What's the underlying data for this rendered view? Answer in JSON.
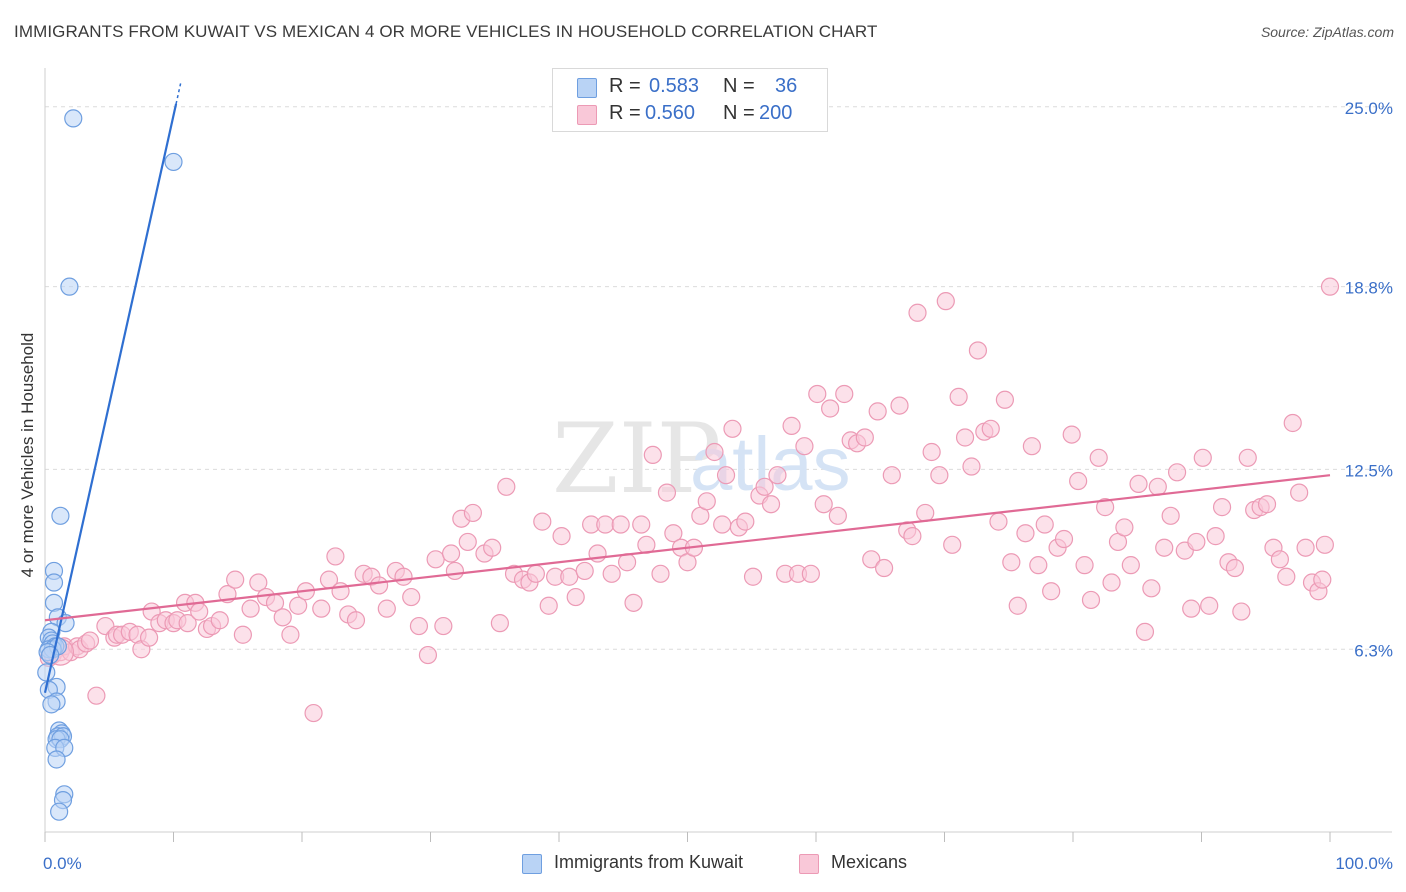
{
  "title": "IMMIGRANTS FROM KUWAIT VS MEXICAN 4 OR MORE VEHICLES IN HOUSEHOLD CORRELATION CHART",
  "source": "Source: ZipAtlas.com",
  "watermark": {
    "zip": "ZIP",
    "atlas": "atlas"
  },
  "stats": {
    "rows": [
      {
        "r_label": "R =",
        "r_value": "0.583",
        "n_label": "N =",
        "n_value": "36"
      },
      {
        "r_label": "R =",
        "r_value": "0.560",
        "n_label": "N =",
        "n_value": "200"
      }
    ]
  },
  "legend": {
    "kuwait": "Immigrants from Kuwait",
    "mexicans": "Mexicans"
  },
  "colors": {
    "blue_fill": "#b9d3f5",
    "blue_stroke": "#6f9fe0",
    "blue_line": "#2f6fd1",
    "pink_fill": "#f9c8d8",
    "pink_stroke": "#ec9ab5",
    "pink_line": "#e06a95",
    "axis_label": "#3a6fc8",
    "grid": "#dcdcdc"
  },
  "chart_data": {
    "type": "scatter",
    "title": "IMMIGRANTS FROM KUWAIT VS MEXICAN 4 OR MORE VEHICLES IN HOUSEHOLD CORRELATION CHART",
    "xlabel": "",
    "ylabel": "4 or more Vehicles in Household",
    "xlim": [
      0,
      100
    ],
    "ylim": [
      0,
      26.2
    ],
    "x_tick_labels": [
      "0.0%",
      "100.0%"
    ],
    "y_ticks": [
      6.3,
      12.5,
      18.8,
      25.0
    ],
    "y_tick_labels": [
      "6.3%",
      "12.5%",
      "18.8%",
      "25.0%"
    ],
    "legend_position": "bottom",
    "series": [
      {
        "name": "Immigrants from Kuwait",
        "color": "blue",
        "trend": {
          "x0": 0.0,
          "y0": 4.8,
          "x1": 10.2,
          "y1": 25.1,
          "dash_to_x": 10.6,
          "dash_to_y": 25.9
        },
        "points": [
          [
            2.2,
            24.6
          ],
          [
            10.0,
            23.1
          ],
          [
            1.9,
            18.8
          ],
          [
            1.2,
            10.9
          ],
          [
            0.7,
            9.0
          ],
          [
            0.7,
            8.6
          ],
          [
            0.7,
            7.9
          ],
          [
            1.0,
            7.4
          ],
          [
            1.6,
            7.2
          ],
          [
            0.5,
            6.9
          ],
          [
            0.3,
            6.7
          ],
          [
            0.5,
            6.6
          ],
          [
            0.6,
            6.5
          ],
          [
            0.8,
            6.4
          ],
          [
            0.3,
            6.3
          ],
          [
            0.6,
            6.3
          ],
          [
            1.0,
            6.4
          ],
          [
            0.2,
            6.2
          ],
          [
            0.4,
            6.1
          ],
          [
            0.1,
            5.5
          ],
          [
            0.9,
            5.0
          ],
          [
            0.3,
            4.9
          ],
          [
            0.9,
            4.5
          ],
          [
            0.5,
            4.4
          ],
          [
            1.1,
            3.5
          ],
          [
            1.3,
            3.4
          ],
          [
            1.0,
            3.3
          ],
          [
            1.4,
            3.3
          ],
          [
            0.9,
            3.2
          ],
          [
            1.2,
            3.2
          ],
          [
            0.8,
            2.9
          ],
          [
            1.5,
            2.9
          ],
          [
            0.9,
            2.5
          ],
          [
            1.5,
            1.3
          ],
          [
            1.4,
            1.1
          ],
          [
            1.1,
            0.7
          ]
        ]
      },
      {
        "name": "Mexicans",
        "color": "pink",
        "trend": {
          "x0": 0.0,
          "y0": 7.3,
          "x1": 100.0,
          "y1": 12.3
        },
        "points": [
          [
            0.3,
            6.0
          ],
          [
            0.6,
            6.1
          ],
          [
            0.9,
            6.3
          ],
          [
            1.2,
            6.2
          ],
          [
            1.5,
            6.4
          ],
          [
            2.0,
            6.2
          ],
          [
            2.5,
            6.4
          ],
          [
            2.7,
            6.3
          ],
          [
            3.2,
            6.5
          ],
          [
            3.5,
            6.6
          ],
          [
            4.0,
            4.7
          ],
          [
            4.7,
            7.1
          ],
          [
            5.4,
            6.7
          ],
          [
            5.6,
            6.8
          ],
          [
            6.0,
            6.8
          ],
          [
            6.6,
            6.9
          ],
          [
            7.2,
            6.8
          ],
          [
            7.5,
            6.3
          ],
          [
            8.1,
            6.7
          ],
          [
            8.3,
            7.6
          ],
          [
            8.9,
            7.2
          ],
          [
            9.4,
            7.3
          ],
          [
            10.0,
            7.2
          ],
          [
            10.3,
            7.3
          ],
          [
            10.9,
            7.9
          ],
          [
            11.1,
            7.2
          ],
          [
            11.7,
            7.9
          ],
          [
            12.0,
            7.6
          ],
          [
            12.6,
            7.0
          ],
          [
            13.0,
            7.1
          ],
          [
            13.6,
            7.3
          ],
          [
            14.2,
            8.2
          ],
          [
            14.8,
            8.7
          ],
          [
            15.4,
            6.8
          ],
          [
            16.0,
            7.7
          ],
          [
            16.6,
            8.6
          ],
          [
            17.2,
            8.1
          ],
          [
            17.9,
            7.9
          ],
          [
            18.5,
            7.4
          ],
          [
            19.1,
            6.8
          ],
          [
            19.7,
            7.8
          ],
          [
            20.3,
            8.3
          ],
          [
            20.9,
            4.1
          ],
          [
            21.5,
            7.7
          ],
          [
            22.1,
            8.7
          ],
          [
            22.6,
            9.5
          ],
          [
            23.0,
            8.3
          ],
          [
            23.6,
            7.5
          ],
          [
            24.2,
            7.3
          ],
          [
            24.8,
            8.9
          ],
          [
            25.4,
            8.8
          ],
          [
            26.0,
            8.5
          ],
          [
            26.6,
            7.7
          ],
          [
            27.3,
            9.0
          ],
          [
            27.9,
            8.8
          ],
          [
            28.5,
            8.1
          ],
          [
            29.1,
            7.1
          ],
          [
            29.8,
            6.1
          ],
          [
            30.4,
            9.4
          ],
          [
            31.0,
            7.1
          ],
          [
            31.6,
            9.6
          ],
          [
            31.9,
            9.0
          ],
          [
            32.4,
            10.8
          ],
          [
            32.9,
            10.0
          ],
          [
            33.3,
            11.0
          ],
          [
            34.2,
            9.6
          ],
          [
            34.8,
            9.8
          ],
          [
            35.4,
            7.2
          ],
          [
            35.9,
            11.9
          ],
          [
            36.5,
            8.9
          ],
          [
            37.2,
            8.7
          ],
          [
            37.7,
            8.6
          ],
          [
            38.2,
            8.9
          ],
          [
            38.7,
            10.7
          ],
          [
            39.2,
            7.8
          ],
          [
            39.7,
            8.8
          ],
          [
            40.2,
            10.2
          ],
          [
            40.8,
            8.8
          ],
          [
            41.3,
            8.1
          ],
          [
            42.0,
            9.0
          ],
          [
            42.5,
            10.6
          ],
          [
            43.0,
            9.6
          ],
          [
            43.6,
            10.6
          ],
          [
            44.1,
            8.9
          ],
          [
            44.8,
            10.6
          ],
          [
            45.3,
            9.3
          ],
          [
            45.8,
            7.9
          ],
          [
            46.4,
            10.6
          ],
          [
            46.8,
            9.9
          ],
          [
            47.3,
            13.0
          ],
          [
            47.9,
            8.9
          ],
          [
            48.4,
            11.7
          ],
          [
            48.9,
            10.3
          ],
          [
            49.5,
            9.8
          ],
          [
            50.0,
            9.3
          ],
          [
            50.5,
            9.8
          ],
          [
            51.0,
            10.9
          ],
          [
            51.5,
            11.4
          ],
          [
            52.1,
            13.1
          ],
          [
            52.7,
            10.6
          ],
          [
            53.0,
            12.3
          ],
          [
            53.5,
            13.9
          ],
          [
            54.0,
            10.5
          ],
          [
            54.5,
            10.7
          ],
          [
            55.1,
            8.8
          ],
          [
            55.6,
            11.6
          ],
          [
            56.0,
            11.9
          ],
          [
            56.5,
            11.3
          ],
          [
            57.0,
            12.3
          ],
          [
            57.6,
            8.9
          ],
          [
            58.1,
            14.0
          ],
          [
            58.6,
            8.9
          ],
          [
            59.1,
            13.3
          ],
          [
            59.6,
            8.9
          ],
          [
            60.1,
            15.1
          ],
          [
            60.6,
            11.3
          ],
          [
            61.1,
            14.6
          ],
          [
            61.7,
            10.9
          ],
          [
            62.2,
            15.1
          ],
          [
            62.7,
            13.5
          ],
          [
            63.2,
            13.4
          ],
          [
            63.8,
            13.6
          ],
          [
            64.3,
            9.4
          ],
          [
            64.8,
            14.5
          ],
          [
            65.3,
            9.1
          ],
          [
            65.9,
            12.3
          ],
          [
            66.5,
            14.7
          ],
          [
            67.1,
            10.4
          ],
          [
            67.5,
            10.2
          ],
          [
            67.9,
            17.9
          ],
          [
            68.5,
            11.0
          ],
          [
            69.0,
            13.1
          ],
          [
            69.6,
            12.3
          ],
          [
            70.1,
            18.3
          ],
          [
            70.6,
            9.9
          ],
          [
            71.1,
            15.0
          ],
          [
            71.6,
            13.6
          ],
          [
            72.1,
            12.6
          ],
          [
            72.6,
            16.6
          ],
          [
            73.1,
            13.8
          ],
          [
            73.6,
            13.9
          ],
          [
            74.2,
            10.7
          ],
          [
            74.7,
            14.9
          ],
          [
            75.2,
            9.3
          ],
          [
            75.7,
            7.8
          ],
          [
            76.3,
            10.3
          ],
          [
            76.8,
            13.3
          ],
          [
            77.3,
            9.2
          ],
          [
            77.8,
            10.6
          ],
          [
            78.3,
            8.3
          ],
          [
            78.8,
            9.8
          ],
          [
            79.3,
            10.1
          ],
          [
            79.9,
            13.7
          ],
          [
            80.4,
            12.1
          ],
          [
            80.9,
            9.2
          ],
          [
            81.4,
            8.0
          ],
          [
            82.0,
            12.9
          ],
          [
            82.5,
            11.2
          ],
          [
            83.0,
            8.6
          ],
          [
            83.5,
            10.0
          ],
          [
            84.0,
            10.5
          ],
          [
            84.5,
            9.2
          ],
          [
            85.1,
            12.0
          ],
          [
            85.6,
            6.9
          ],
          [
            86.1,
            8.4
          ],
          [
            86.6,
            11.9
          ],
          [
            87.1,
            9.8
          ],
          [
            87.6,
            10.9
          ],
          [
            88.1,
            12.4
          ],
          [
            88.7,
            9.7
          ],
          [
            89.2,
            7.7
          ],
          [
            89.6,
            10.0
          ],
          [
            90.1,
            12.9
          ],
          [
            90.6,
            7.8
          ],
          [
            91.1,
            10.2
          ],
          [
            91.6,
            11.2
          ],
          [
            92.1,
            9.3
          ],
          [
            92.6,
            9.1
          ],
          [
            93.1,
            7.6
          ],
          [
            93.6,
            12.9
          ],
          [
            94.1,
            11.1
          ],
          [
            94.6,
            11.2
          ],
          [
            95.1,
            11.3
          ],
          [
            95.6,
            9.8
          ],
          [
            96.1,
            9.4
          ],
          [
            96.6,
            8.8
          ],
          [
            97.1,
            14.1
          ],
          [
            97.6,
            11.7
          ],
          [
            98.1,
            9.8
          ],
          [
            98.6,
            8.6
          ],
          [
            99.1,
            8.3
          ],
          [
            99.6,
            9.9
          ],
          [
            100.0,
            18.8
          ],
          [
            99.4,
            8.7
          ]
        ]
      }
    ]
  }
}
